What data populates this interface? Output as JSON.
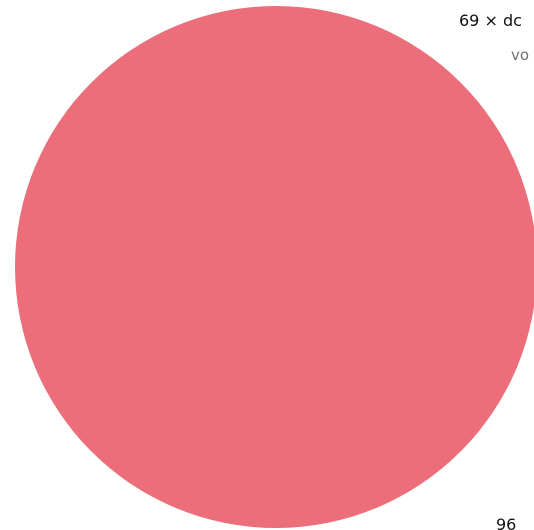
{
  "colors": {
    "disc_fill": "#ec6e7a",
    "background": "#ffffff"
  },
  "labels": {
    "top": "69 × dc",
    "sub": "vo",
    "bottom": "96"
  }
}
